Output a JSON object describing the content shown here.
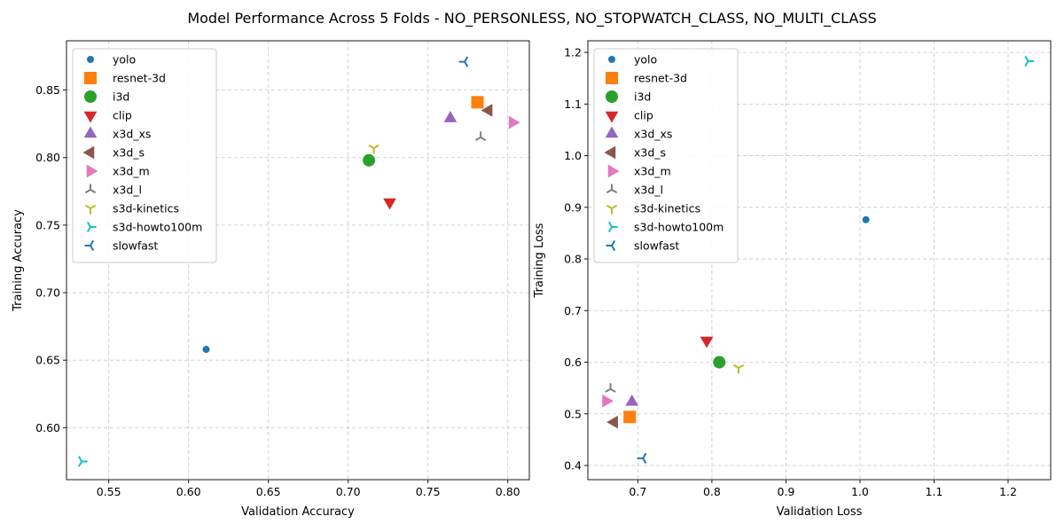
{
  "figure": {
    "title": "Model Performance Across 5 Folds - NO_PERSONLESS, NO_STOPWATCH_CLASS, NO_MULTI_CLASS"
  },
  "series_styles": [
    {
      "name": "yolo",
      "color": "#1f77b4",
      "marker": "circle-small"
    },
    {
      "name": "resnet-3d",
      "color": "#ff7f0e",
      "marker": "square"
    },
    {
      "name": "i3d",
      "color": "#2ca02c",
      "marker": "circle"
    },
    {
      "name": "clip",
      "color": "#d62728",
      "marker": "triangle-down"
    },
    {
      "name": "x3d_xs",
      "color": "#9467bd",
      "marker": "triangle-up"
    },
    {
      "name": "x3d_s",
      "color": "#8c564b",
      "marker": "triangle-left"
    },
    {
      "name": "x3d_m",
      "color": "#e377c2",
      "marker": "triangle-right"
    },
    {
      "name": "x3d_l",
      "color": "#7f7f7f",
      "marker": "tri-down"
    },
    {
      "name": "s3d-kinetics",
      "color": "#bcbd22",
      "marker": "tri-up"
    },
    {
      "name": "s3d-howto100m",
      "color": "#17becf",
      "marker": "tri-left"
    },
    {
      "name": "slowfast",
      "color": "#1f77b4",
      "marker": "tri-right"
    }
  ],
  "chart_data": [
    {
      "type": "scatter",
      "xlabel": "Validation Accuracy",
      "ylabel": "Training Accuracy",
      "xlim": [
        0.5235,
        0.8135
      ],
      "ylim": [
        0.5615,
        0.8865
      ],
      "xticks": [
        0.55,
        0.6,
        0.65,
        0.7,
        0.75,
        0.8
      ],
      "yticks": [
        0.6,
        0.65,
        0.7,
        0.75,
        0.8,
        0.85
      ],
      "tick_decimals": 2,
      "grid": true,
      "legend_position": "upper-left",
      "series": [
        {
          "name": "yolo",
          "x": [
            0.611
          ],
          "y": [
            0.658
          ]
        },
        {
          "name": "resnet-3d",
          "x": [
            0.781
          ],
          "y": [
            0.841
          ]
        },
        {
          "name": "i3d",
          "x": [
            0.713
          ],
          "y": [
            0.798
          ]
        },
        {
          "name": "clip",
          "x": [
            0.726
          ],
          "y": [
            0.767
          ]
        },
        {
          "name": "x3d_xs",
          "x": [
            0.764
          ],
          "y": [
            0.829
          ]
        },
        {
          "name": "x3d_s",
          "x": [
            0.788
          ],
          "y": [
            0.835
          ]
        },
        {
          "name": "x3d_m",
          "x": [
            0.803
          ],
          "y": [
            0.826
          ]
        },
        {
          "name": "x3d_l",
          "x": [
            0.783
          ],
          "y": [
            0.815
          ]
        },
        {
          "name": "s3d-kinetics",
          "x": [
            0.716
          ],
          "y": [
            0.807
          ]
        },
        {
          "name": "s3d-howto100m",
          "x": [
            0.533
          ],
          "y": [
            0.575
          ]
        },
        {
          "name": "slowfast",
          "x": [
            0.773
          ],
          "y": [
            0.871
          ]
        }
      ]
    },
    {
      "type": "scatter",
      "xlabel": "Validation Loss",
      "ylabel": "Training Loss",
      "xlim": [
        0.6325,
        1.2575
      ],
      "ylim": [
        0.3725,
        1.2225
      ],
      "xticks": [
        0.7,
        0.8,
        0.9,
        1.0,
        1.1,
        1.2
      ],
      "yticks": [
        0.4,
        0.5,
        0.6,
        0.7,
        0.8,
        0.9,
        1.0,
        1.1,
        1.2
      ],
      "tick_decimals": 1,
      "grid": true,
      "legend_position": "upper-left",
      "series": [
        {
          "name": "yolo",
          "x": [
            1.008
          ],
          "y": [
            0.876
          ]
        },
        {
          "name": "resnet-3d",
          "x": [
            0.689
          ],
          "y": [
            0.494
          ]
        },
        {
          "name": "i3d",
          "x": [
            0.81
          ],
          "y": [
            0.6
          ]
        },
        {
          "name": "clip",
          "x": [
            0.793
          ],
          "y": [
            0.642
          ]
        },
        {
          "name": "x3d_xs",
          "x": [
            0.692
          ],
          "y": [
            0.523
          ]
        },
        {
          "name": "x3d_s",
          "x": [
            0.668
          ],
          "y": [
            0.484
          ]
        },
        {
          "name": "x3d_m",
          "x": [
            0.657
          ],
          "y": [
            0.525
          ]
        },
        {
          "name": "x3d_l",
          "x": [
            0.663
          ],
          "y": [
            0.548
          ]
        },
        {
          "name": "s3d-kinetics",
          "x": [
            0.836
          ],
          "y": [
            0.589
          ]
        },
        {
          "name": "s3d-howto100m",
          "x": [
            1.227
          ],
          "y": [
            1.183
          ]
        },
        {
          "name": "slowfast",
          "x": [
            0.707
          ],
          "y": [
            0.414
          ]
        }
      ]
    }
  ]
}
